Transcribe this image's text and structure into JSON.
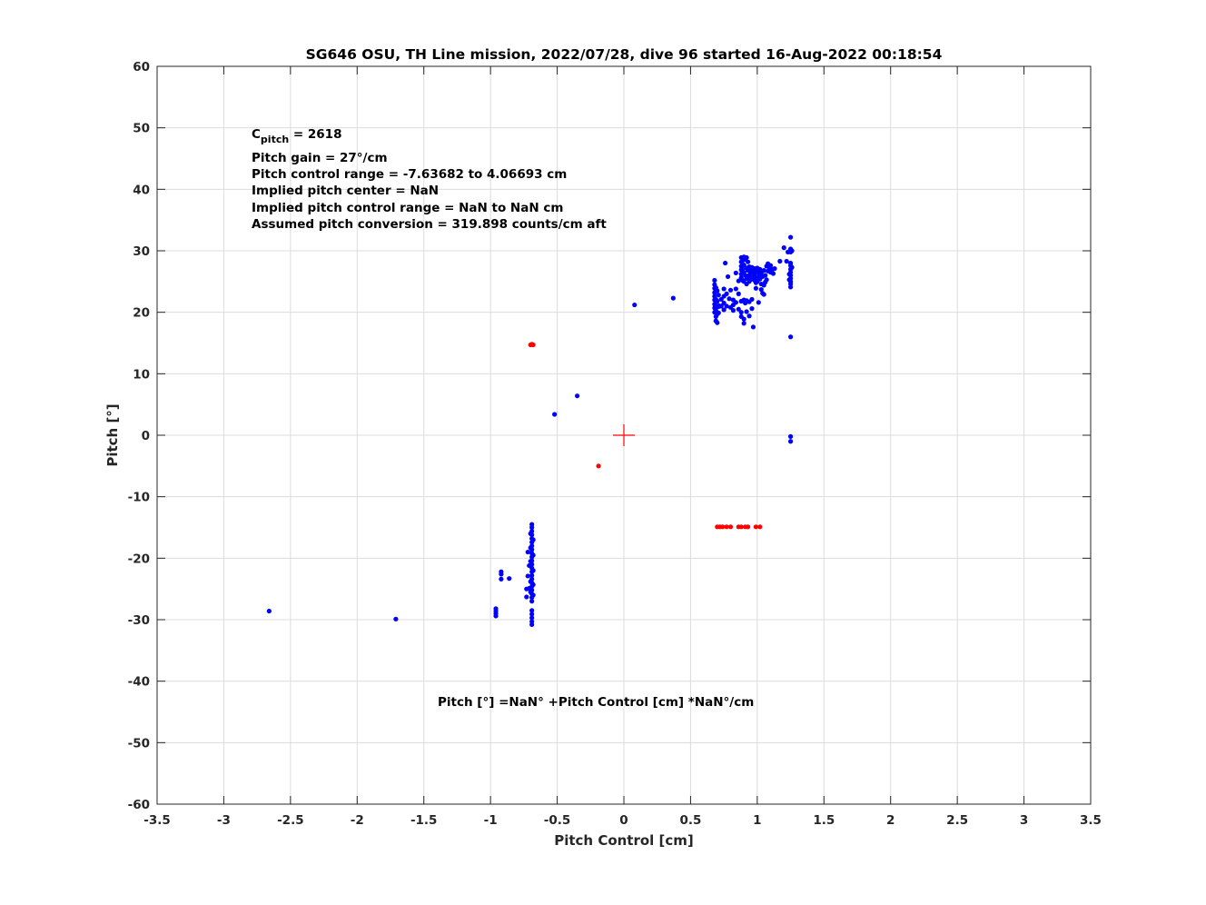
{
  "chart_data": {
    "type": "scatter",
    "title": "SG646 OSU, TH Line mission, 2022/07/28, dive 96 started 16-Aug-2022 00:18:54",
    "xlabel": "Pitch Control [cm]",
    "ylabel": "Pitch [°]",
    "xlim": [
      -3.5,
      3.5
    ],
    "ylim": [
      -60,
      60
    ],
    "xticks": [
      -3.5,
      -3,
      -2.5,
      -2,
      -1.5,
      -1,
      -0.5,
      0,
      0.5,
      1,
      1.5,
      2,
      2.5,
      3,
      3.5
    ],
    "yticks": [
      -60,
      -50,
      -40,
      -30,
      -20,
      -10,
      0,
      10,
      20,
      30,
      40,
      50,
      60
    ],
    "xtick_labels": [
      "-3.5",
      "-3",
      "-2.5",
      "-2",
      "-1.5",
      "-1",
      "-0.5",
      "0",
      "0.5",
      "1",
      "1.5",
      "2",
      "2.5",
      "3",
      "3.5"
    ],
    "ytick_labels": [
      "-60",
      "-50",
      "-40",
      "-30",
      "-20",
      "-10",
      "0",
      "10",
      "20",
      "30",
      "40",
      "50",
      "60"
    ],
    "grid": true,
    "annotations": {
      "c_pitch_prefix": "C",
      "c_pitch_sub": "pitch",
      "c_pitch_value": " = 2618",
      "lines": [
        "Pitch gain = 27°/cm",
        "Pitch control range = -7.63682 to 4.06693 cm",
        "Implied pitch center = NaN",
        "Implied pitch control range = NaN to NaN cm",
        "Assumed pitch conversion = 319.898 counts/cm aft"
      ],
      "fit_equation": "Pitch [°] =NaN° +Pitch Control [cm] *NaN°/cm"
    },
    "center_marker": {
      "x": 0,
      "y": 0,
      "color": "#ff0000"
    },
    "series": [
      {
        "color": "#0000ff",
        "points": [
          [
            -2.66,
            -28.6
          ],
          [
            -1.71,
            -29.9
          ],
          [
            -0.96,
            -28.2
          ],
          [
            -0.96,
            -28.6
          ],
          [
            -0.96,
            -29.0
          ],
          [
            -0.96,
            -29.4
          ],
          [
            -0.92,
            -22.2
          ],
          [
            -0.92,
            -22.6
          ],
          [
            -0.92,
            -23.4
          ],
          [
            -0.86,
            -23.3
          ],
          [
            -0.69,
            -14.5
          ],
          [
            -0.69,
            -15.0
          ],
          [
            -0.69,
            -15.6
          ],
          [
            -0.69,
            -16.2
          ],
          [
            -0.69,
            -16.8
          ],
          [
            -0.69,
            -17.4
          ],
          [
            -0.69,
            -18.0
          ],
          [
            -0.69,
            -18.6
          ],
          [
            -0.69,
            -19.2
          ],
          [
            -0.69,
            -19.8
          ],
          [
            -0.69,
            -20.4
          ],
          [
            -0.69,
            -21.0
          ],
          [
            -0.69,
            -21.6
          ],
          [
            -0.69,
            -22.2
          ],
          [
            -0.69,
            -22.8
          ],
          [
            -0.69,
            -23.4
          ],
          [
            -0.69,
            -24.0
          ],
          [
            -0.69,
            -24.6
          ],
          [
            -0.69,
            -25.2
          ],
          [
            -0.69,
            -25.8
          ],
          [
            -0.69,
            -26.4
          ],
          [
            -0.69,
            -27.0
          ],
          [
            -0.69,
            -28.5
          ],
          [
            -0.69,
            -29.1
          ],
          [
            -0.69,
            -29.7
          ],
          [
            -0.69,
            -30.3
          ],
          [
            -0.69,
            -30.8
          ],
          [
            -0.7,
            -16.0
          ],
          [
            -0.7,
            -18.3
          ],
          [
            -0.7,
            -20.5
          ],
          [
            -0.7,
            -23.8
          ],
          [
            -0.7,
            -25.5
          ],
          [
            -0.68,
            -17.0
          ],
          [
            -0.68,
            -19.5
          ],
          [
            -0.68,
            -22.0
          ],
          [
            -0.68,
            -24.3
          ],
          [
            -0.68,
            -26.0
          ],
          [
            -0.71,
            -21.2
          ],
          [
            -0.71,
            -24.9
          ],
          [
            -0.72,
            -19.0
          ],
          [
            -0.72,
            -22.9
          ],
          [
            -0.73,
            -25.0
          ],
          [
            -0.73,
            -26.3
          ],
          [
            -0.52,
            3.4
          ],
          [
            -0.35,
            6.4
          ],
          [
            0.08,
            21.2
          ],
          [
            0.37,
            22.3
          ],
          [
            0.68,
            25.2
          ],
          [
            0.68,
            24.5
          ],
          [
            0.68,
            23.9
          ],
          [
            0.68,
            23.2
          ],
          [
            0.68,
            22.6
          ],
          [
            0.68,
            22.0
          ],
          [
            0.68,
            21.3
          ],
          [
            0.68,
            20.7
          ],
          [
            0.68,
            20.0
          ],
          [
            0.69,
            24.0
          ],
          [
            0.69,
            22.1
          ],
          [
            0.69,
            20.3
          ],
          [
            0.69,
            19.3
          ],
          [
            0.69,
            18.6
          ],
          [
            0.7,
            23.5
          ],
          [
            0.7,
            21.8
          ],
          [
            0.7,
            19.7
          ],
          [
            0.7,
            18.3
          ],
          [
            0.71,
            22.8
          ],
          [
            0.71,
            21.1
          ],
          [
            0.71,
            20.9
          ],
          [
            0.71,
            19.9
          ],
          [
            0.73,
            22.1
          ],
          [
            0.73,
            21.0
          ],
          [
            0.75,
            23.8
          ],
          [
            0.75,
            22.6
          ],
          [
            0.75,
            21.5
          ],
          [
            0.75,
            20.4
          ],
          [
            0.76,
            28.0
          ],
          [
            0.77,
            23.0
          ],
          [
            0.77,
            21.0
          ],
          [
            0.78,
            25.8
          ],
          [
            0.79,
            22.2
          ],
          [
            0.8,
            20.8
          ],
          [
            0.8,
            23.6
          ],
          [
            0.82,
            22.0
          ],
          [
            0.82,
            21.2
          ],
          [
            0.82,
            20.3
          ],
          [
            0.84,
            26.4
          ],
          [
            0.84,
            23.8
          ],
          [
            0.84,
            21.6
          ],
          [
            0.86,
            25.1
          ],
          [
            0.86,
            23.0
          ],
          [
            0.86,
            20.5
          ],
          [
            0.88,
            28.9
          ],
          [
            0.88,
            28.2
          ],
          [
            0.88,
            27.5
          ],
          [
            0.88,
            26.9
          ],
          [
            0.88,
            26.2
          ],
          [
            0.88,
            25.6
          ],
          [
            0.88,
            21.8
          ],
          [
            0.88,
            20.0
          ],
          [
            0.88,
            19.3
          ],
          [
            0.89,
            28.4
          ],
          [
            0.89,
            27.0
          ],
          [
            0.89,
            25.2
          ],
          [
            0.9,
            29.0
          ],
          [
            0.9,
            27.7
          ],
          [
            0.9,
            26.5
          ],
          [
            0.9,
            25.0
          ],
          [
            0.9,
            22.0
          ],
          [
            0.9,
            18.9
          ],
          [
            0.9,
            18.2
          ],
          [
            0.91,
            28.6
          ],
          [
            0.91,
            26.0
          ],
          [
            0.91,
            21.5
          ],
          [
            0.92,
            28.9
          ],
          [
            0.92,
            27.2
          ],
          [
            0.92,
            25.5
          ],
          [
            0.92,
            24.6
          ],
          [
            0.92,
            21.9
          ],
          [
            0.92,
            20.1
          ],
          [
            0.93,
            28.2
          ],
          [
            0.93,
            26.8
          ],
          [
            0.93,
            25.9
          ],
          [
            0.94,
            27.4
          ],
          [
            0.94,
            26.0
          ],
          [
            0.94,
            25.0
          ],
          [
            0.94,
            21.7
          ],
          [
            0.94,
            19.4
          ],
          [
            0.95,
            27.0
          ],
          [
            0.95,
            26.4
          ],
          [
            0.95,
            25.3
          ],
          [
            0.96,
            27.3
          ],
          [
            0.96,
            26.6
          ],
          [
            0.96,
            25.7
          ],
          [
            0.96,
            22.1
          ],
          [
            0.96,
            20.6
          ],
          [
            0.97,
            26.9
          ],
          [
            0.97,
            25.4
          ],
          [
            0.97,
            17.6
          ],
          [
            0.98,
            27.1
          ],
          [
            0.98,
            26.2
          ],
          [
            0.98,
            25.2
          ],
          [
            0.99,
            26.8
          ],
          [
            0.99,
            25.6
          ],
          [
            0.99,
            24.8
          ],
          [
            0.99,
            23.9
          ],
          [
            1.0,
            27.2
          ],
          [
            1.0,
            26.5
          ],
          [
            1.0,
            25.0
          ],
          [
            1.01,
            26.7
          ],
          [
            1.01,
            25.8
          ],
          [
            1.01,
            21.6
          ],
          [
            1.02,
            27.0
          ],
          [
            1.02,
            26.2
          ],
          [
            1.02,
            25.4
          ],
          [
            1.03,
            26.4
          ],
          [
            1.03,
            24.6
          ],
          [
            1.03,
            23.7
          ],
          [
            1.04,
            25.8
          ],
          [
            1.04,
            23.1
          ],
          [
            1.05,
            26.8
          ],
          [
            1.05,
            24.4
          ],
          [
            1.05,
            22.9
          ],
          [
            1.06,
            26.0
          ],
          [
            1.06,
            24.9
          ],
          [
            1.07,
            27.5
          ],
          [
            1.07,
            25.3
          ],
          [
            1.08,
            27.9
          ],
          [
            1.08,
            26.7
          ],
          [
            1.09,
            27.3
          ],
          [
            1.1,
            26.5
          ],
          [
            1.1,
            27.6
          ],
          [
            1.11,
            27.0
          ],
          [
            1.12,
            26.3
          ],
          [
            1.13,
            27.1
          ],
          [
            1.17,
            28.3
          ],
          [
            1.2,
            30.5
          ],
          [
            1.22,
            28.3
          ],
          [
            1.23,
            29.8
          ],
          [
            1.25,
            32.2
          ],
          [
            1.25,
            30.3
          ],
          [
            1.25,
            29.8
          ],
          [
            1.25,
            28.0
          ],
          [
            1.25,
            27.6
          ],
          [
            1.25,
            27.0
          ],
          [
            1.25,
            26.5
          ],
          [
            1.25,
            26.0
          ],
          [
            1.25,
            25.5
          ],
          [
            1.25,
            25.0
          ],
          [
            1.25,
            24.6
          ],
          [
            1.25,
            24.1
          ],
          [
            1.24,
            26.2
          ],
          [
            1.24,
            25.3
          ],
          [
            1.26,
            30.0
          ],
          [
            1.26,
            27.3
          ],
          [
            1.25,
            16.0
          ],
          [
            1.25,
            -0.2
          ],
          [
            1.25,
            -1.0
          ]
        ]
      },
      {
        "color": "#ff0000",
        "points": [
          [
            -0.69,
            14.8
          ],
          [
            -0.68,
            14.7
          ],
          [
            -0.7,
            14.7
          ],
          [
            -0.19,
            -5.0
          ],
          [
            0.7,
            -14.9
          ],
          [
            0.72,
            -14.9
          ],
          [
            0.74,
            -14.9
          ],
          [
            0.77,
            -14.9
          ],
          [
            0.8,
            -14.9
          ],
          [
            0.86,
            -14.9
          ],
          [
            0.88,
            -14.9
          ],
          [
            0.91,
            -14.9
          ],
          [
            0.93,
            -14.9
          ],
          [
            0.99,
            -14.9
          ],
          [
            1.02,
            -14.9
          ]
        ]
      }
    ]
  }
}
